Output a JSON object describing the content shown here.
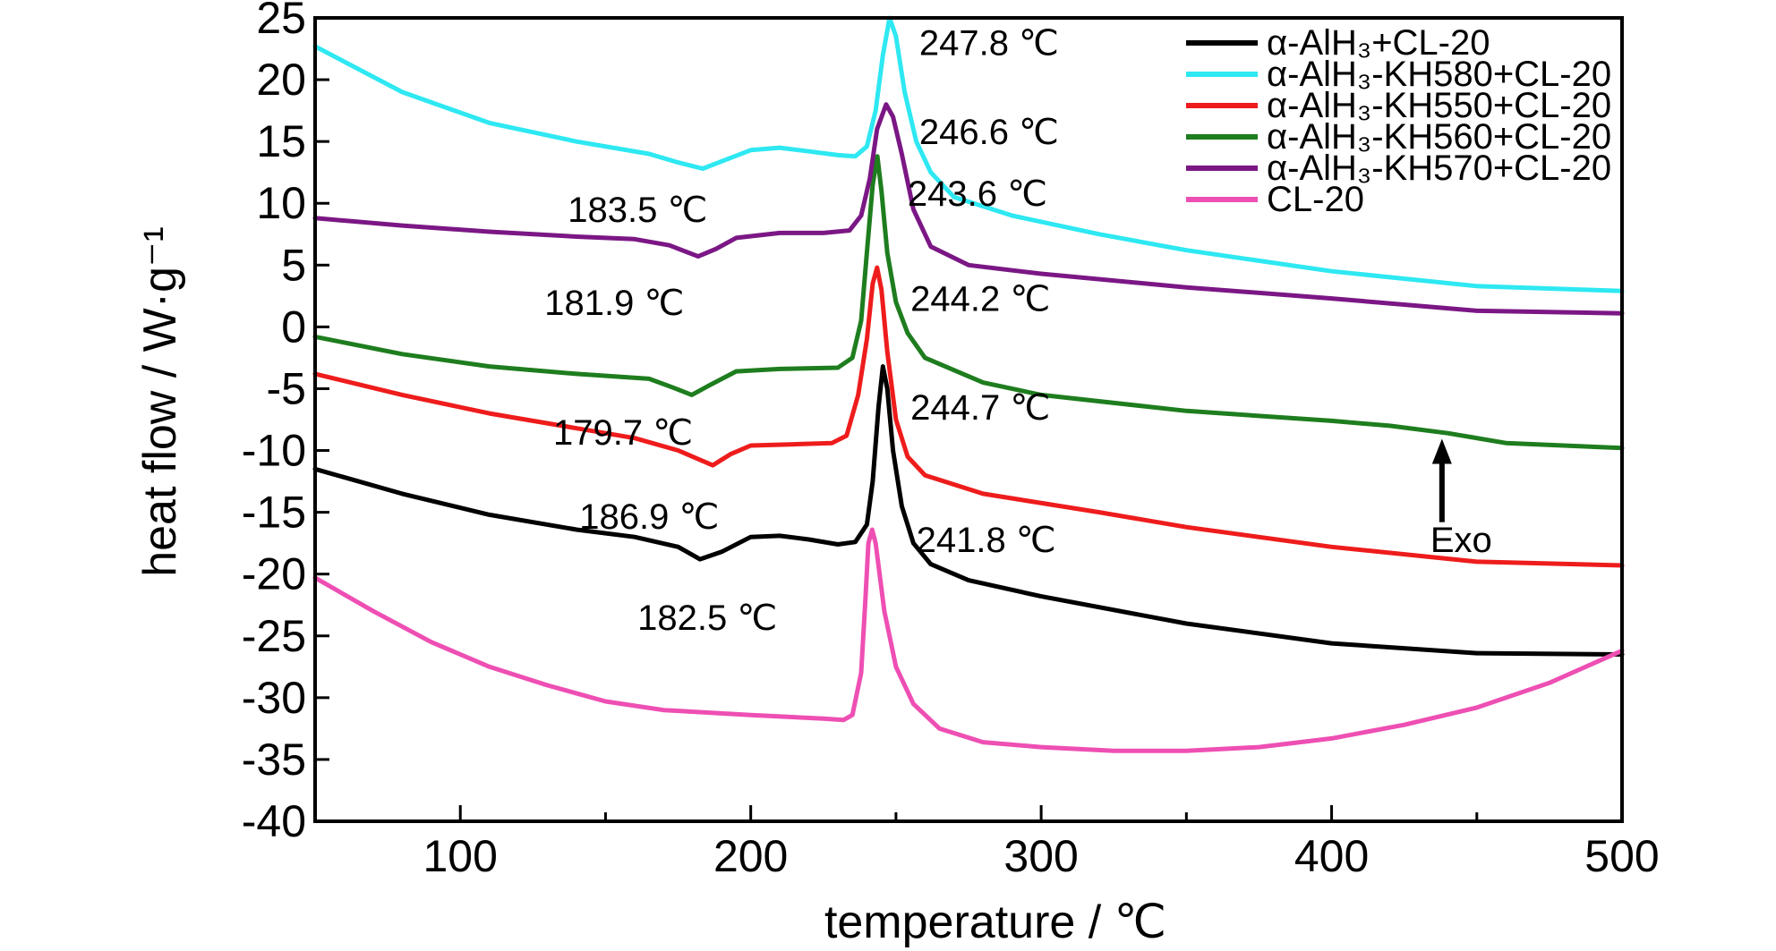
{
  "chart_data": {
    "type": "line",
    "xlabel": "temperature / ℃",
    "ylabel": "heat flow / W·g⁻¹",
    "xlim": [
      50,
      500
    ],
    "ylim": [
      -40,
      25
    ],
    "x_ticks": [
      100,
      200,
      300,
      400,
      500
    ],
    "y_ticks": [
      25,
      20,
      15,
      10,
      5,
      0,
      -5,
      -10,
      -15,
      -20,
      -25,
      -30,
      -35,
      -40
    ],
    "grid": false,
    "legend_position": "top-right",
    "series": [
      {
        "name": "α-AlH₃+CL-20",
        "color": "#000000",
        "points": [
          [
            50,
            -11.5
          ],
          [
            80,
            -13.5
          ],
          [
            110,
            -15.2
          ],
          [
            140,
            -16.4
          ],
          [
            160,
            -17.0
          ],
          [
            175,
            -17.8
          ],
          [
            182.5,
            -18.8
          ],
          [
            190,
            -18.2
          ],
          [
            200,
            -17.0
          ],
          [
            210,
            -16.9
          ],
          [
            220,
            -17.2
          ],
          [
            230,
            -17.6
          ],
          [
            236,
            -17.4
          ],
          [
            240,
            -16.0
          ],
          [
            242,
            -12.5
          ],
          [
            244,
            -6.5
          ],
          [
            245.5,
            -3.2
          ],
          [
            247,
            -5
          ],
          [
            249,
            -10
          ],
          [
            252,
            -14.5
          ],
          [
            256,
            -17.5
          ],
          [
            262,
            -19.2
          ],
          [
            275,
            -20.5
          ],
          [
            300,
            -21.8
          ],
          [
            350,
            -24.0
          ],
          [
            400,
            -25.6
          ],
          [
            450,
            -26.4
          ],
          [
            500,
            -26.5
          ]
        ]
      },
      {
        "name": "α-AlH₃-KH580+CL-20",
        "color": "#2EE8F2",
        "points": [
          [
            50,
            22.7
          ],
          [
            80,
            19.0
          ],
          [
            110,
            16.5
          ],
          [
            140,
            15.0
          ],
          [
            165,
            14.0
          ],
          [
            175,
            13.3
          ],
          [
            183.5,
            12.8
          ],
          [
            190,
            13.4
          ],
          [
            200,
            14.3
          ],
          [
            210,
            14.5
          ],
          [
            220,
            14.2
          ],
          [
            230,
            13.9
          ],
          [
            236,
            13.8
          ],
          [
            240,
            14.6
          ],
          [
            243,
            17.5
          ],
          [
            245.5,
            22
          ],
          [
            247.8,
            25.0
          ],
          [
            250,
            23.5
          ],
          [
            253,
            19
          ],
          [
            257,
            15
          ],
          [
            262,
            12.5
          ],
          [
            270,
            10.5
          ],
          [
            290,
            9.0
          ],
          [
            320,
            7.5
          ],
          [
            350,
            6.2
          ],
          [
            400,
            4.5
          ],
          [
            450,
            3.3
          ],
          [
            500,
            2.9
          ]
        ]
      },
      {
        "name": "α-AlH₃-KH550+CL-20",
        "color": "#EE1C1C",
        "points": [
          [
            50,
            -3.8
          ],
          [
            80,
            -5.5
          ],
          [
            110,
            -7.0
          ],
          [
            140,
            -8.2
          ],
          [
            160,
            -9.0
          ],
          [
            175,
            -10.0
          ],
          [
            186.9,
            -11.2
          ],
          [
            193,
            -10.3
          ],
          [
            200,
            -9.6
          ],
          [
            215,
            -9.5
          ],
          [
            228,
            -9.4
          ],
          [
            233,
            -8.8
          ],
          [
            237,
            -5.5
          ],
          [
            240,
            -1
          ],
          [
            242,
            3.5
          ],
          [
            243.5,
            4.8
          ],
          [
            245,
            3
          ],
          [
            247,
            -2
          ],
          [
            250,
            -7.5
          ],
          [
            254,
            -10.5
          ],
          [
            260,
            -12.0
          ],
          [
            280,
            -13.5
          ],
          [
            320,
            -15.0
          ],
          [
            350,
            -16.2
          ],
          [
            400,
            -17.8
          ],
          [
            450,
            -19.0
          ],
          [
            500,
            -19.3
          ]
        ]
      },
      {
        "name": "α-AlH₃-KH560+CL-20",
        "color": "#1E7D1E",
        "points": [
          [
            50,
            -0.8
          ],
          [
            80,
            -2.2
          ],
          [
            110,
            -3.2
          ],
          [
            140,
            -3.8
          ],
          [
            165,
            -4.2
          ],
          [
            172,
            -4.8
          ],
          [
            179.7,
            -5.5
          ],
          [
            186,
            -4.7
          ],
          [
            195,
            -3.6
          ],
          [
            210,
            -3.4
          ],
          [
            230,
            -3.3
          ],
          [
            235,
            -2.5
          ],
          [
            238,
            0.5
          ],
          [
            240,
            6
          ],
          [
            242,
            11.5
          ],
          [
            243.6,
            13.8
          ],
          [
            245,
            11
          ],
          [
            247,
            6
          ],
          [
            250,
            2
          ],
          [
            254,
            -0.5
          ],
          [
            260,
            -2.5
          ],
          [
            280,
            -4.5
          ],
          [
            300,
            -5.5
          ],
          [
            350,
            -6.8
          ],
          [
            400,
            -7.6
          ],
          [
            420,
            -8.0
          ],
          [
            440,
            -8.6
          ],
          [
            460,
            -9.4
          ],
          [
            500,
            -9.8
          ]
        ]
      },
      {
        "name": "α-AlH₃-KH570+CL-20",
        "color": "#7B1785",
        "points": [
          [
            50,
            8.8
          ],
          [
            80,
            8.2
          ],
          [
            110,
            7.7
          ],
          [
            140,
            7.3
          ],
          [
            160,
            7.1
          ],
          [
            172,
            6.6
          ],
          [
            181.9,
            5.7
          ],
          [
            188,
            6.3
          ],
          [
            195,
            7.2
          ],
          [
            210,
            7.6
          ],
          [
            225,
            7.6
          ],
          [
            234,
            7.8
          ],
          [
            238,
            9
          ],
          [
            241,
            12
          ],
          [
            243.5,
            16
          ],
          [
            246.6,
            18.0
          ],
          [
            249,
            17
          ],
          [
            252,
            14
          ],
          [
            256,
            9.5
          ],
          [
            262,
            6.5
          ],
          [
            275,
            5.0
          ],
          [
            300,
            4.3
          ],
          [
            350,
            3.2
          ],
          [
            400,
            2.3
          ],
          [
            450,
            1.3
          ],
          [
            500,
            1.1
          ]
        ]
      },
      {
        "name": "CL-20",
        "color": "#EE4FB3",
        "points": [
          [
            50,
            -20.3
          ],
          [
            70,
            -23.0
          ],
          [
            90,
            -25.5
          ],
          [
            110,
            -27.5
          ],
          [
            130,
            -29.0
          ],
          [
            150,
            -30.3
          ],
          [
            170,
            -31.0
          ],
          [
            200,
            -31.4
          ],
          [
            225,
            -31.7
          ],
          [
            232,
            -31.8
          ],
          [
            235,
            -31.4
          ],
          [
            238,
            -28
          ],
          [
            239.5,
            -22
          ],
          [
            240.5,
            -17.5
          ],
          [
            241.8,
            -16.4
          ],
          [
            243,
            -17.5
          ],
          [
            246,
            -23
          ],
          [
            250,
            -27.5
          ],
          [
            256,
            -30.5
          ],
          [
            265,
            -32.5
          ],
          [
            280,
            -33.6
          ],
          [
            300,
            -34.0
          ],
          [
            325,
            -34.3
          ],
          [
            350,
            -34.3
          ],
          [
            375,
            -34.0
          ],
          [
            400,
            -33.3
          ],
          [
            425,
            -32.2
          ],
          [
            450,
            -30.8
          ],
          [
            475,
            -28.8
          ],
          [
            500,
            -26.2
          ]
        ]
      }
    ],
    "annotations": [
      {
        "text": "247.8 ℃",
        "x": 258,
        "y": 23.0
      },
      {
        "text": "246.6 ℃",
        "x": 258,
        "y": 15.8
      },
      {
        "text": "243.6 ℃",
        "x": 254,
        "y": 10.8
      },
      {
        "text": "244.2 ℃",
        "x": 255,
        "y": 2.3
      },
      {
        "text": "244.7 ℃",
        "x": 255,
        "y": -6.5
      },
      {
        "text": "241.8 ℃",
        "x": 257,
        "y": -17.2
      },
      {
        "text": "183.5 ℃",
        "x": 137,
        "y": 9.5
      },
      {
        "text": "181.9 ℃",
        "x": 129,
        "y": 2.0
      },
      {
        "text": "179.7 ℃",
        "x": 132,
        "y": -8.5
      },
      {
        "text": "186.9 ℃",
        "x": 141,
        "y": -15.3
      },
      {
        "text": "182.5 ℃",
        "x": 161,
        "y": -23.5
      },
      {
        "text": "Exo",
        "x": 434,
        "y": -17.2
      }
    ],
    "exo_arrow": {
      "x": 438,
      "from_y": -15.8,
      "to_y": -9.2
    }
  }
}
